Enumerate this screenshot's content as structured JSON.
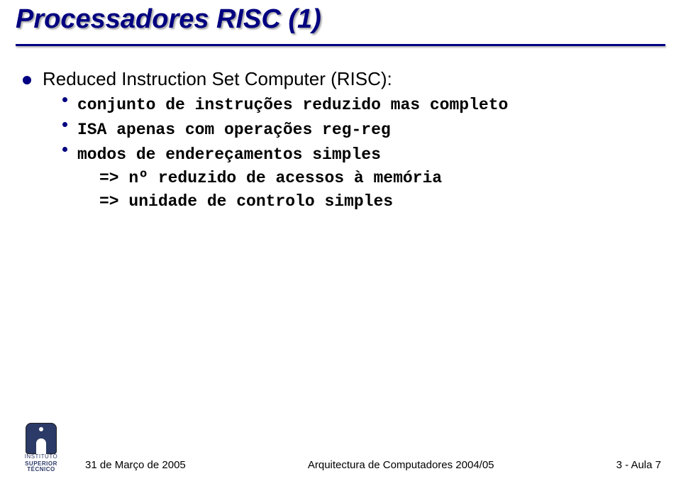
{
  "title": "Processadores RISC (1)",
  "bullet1": "Reduced Instruction Set Computer (RISC):",
  "sub1": "conjunto de instruções reduzido mas completo",
  "sub2": "ISA apenas com operações reg-reg",
  "sub3": "modos de endereçamentos simples",
  "arrow1": "=> nº reduzido de acessos à memória",
  "arrow2": "=> unidade de controlo simples",
  "footer_left": "31 de Março de 2005",
  "footer_center": "Arquitectura de Computadores 2004/05",
  "footer_right": "3 - Aula 7",
  "logo_top": "INSTITUTO",
  "logo_mid": "SUPERIOR",
  "logo_bot": "TÉCNICO",
  "colors": {
    "title": "#000080",
    "rule": "#000080",
    "bullet": "#000080",
    "text": "#000000",
    "background": "#ffffff",
    "logo": "#2b3a67"
  },
  "typography": {
    "title_fontsize": 38,
    "bullet_fontsize": 26,
    "mono_fontsize": 23,
    "footer_fontsize": 15
  }
}
